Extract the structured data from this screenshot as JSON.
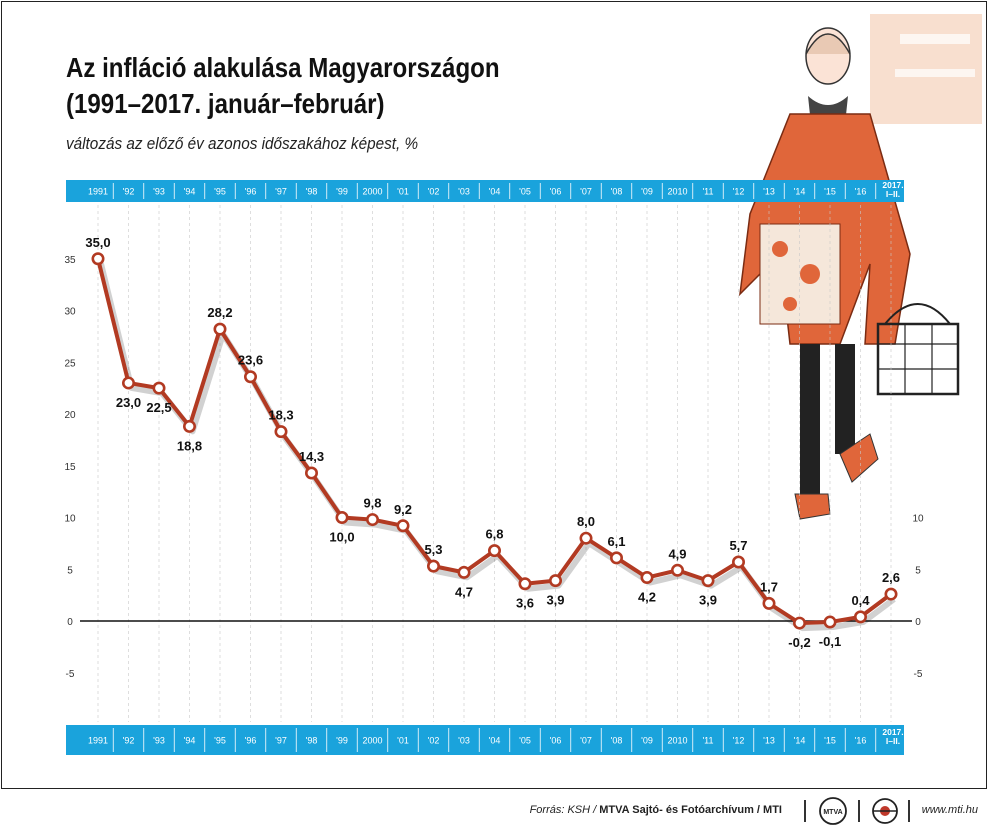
{
  "header": {
    "title_line1": "Az infláció alakulása Magyarországon",
    "title_line2": "(1991–2017. január–február)",
    "subtitle": "változás az előző év azonos időszakához képest, %"
  },
  "chart_data": {
    "type": "line",
    "title": "Az infláció alakulása Magyarországon (1991–2017. január–február)",
    "subtitle": "változás az előző év azonos időszakához képest, %",
    "xlabel": "",
    "ylabel": "",
    "ylim": [
      -5,
      35
    ],
    "left_ticks": [
      "35",
      "30",
      "25",
      "20",
      "15",
      "10",
      "5",
      "0",
      "-5"
    ],
    "right_ticks": [
      "10",
      "5",
      "0",
      "-5"
    ],
    "categories": [
      "1991",
      "'92",
      "'93",
      "'94",
      "'95",
      "'96",
      "'97",
      "'98",
      "'99",
      "2000",
      "'01",
      "'02",
      "'03",
      "'04",
      "'05",
      "'06",
      "'07",
      "'08",
      "'09",
      "2010",
      "'11",
      "'12",
      "'13",
      "'14",
      "'15",
      "'16",
      "2017. I–II."
    ],
    "values": [
      35.0,
      23.0,
      22.5,
      18.8,
      28.2,
      23.6,
      18.3,
      14.3,
      10.0,
      9.8,
      9.2,
      5.3,
      4.7,
      6.8,
      3.6,
      3.9,
      8.0,
      6.1,
      4.2,
      4.9,
      3.9,
      5.7,
      1.7,
      -0.2,
      -0.1,
      0.4,
      2.6
    ],
    "labels": [
      "35,0",
      "23,0",
      "22,5",
      "18,8",
      "28,2",
      "23,6",
      "18,3",
      "14,3",
      "10,0",
      "9,8",
      "9,2",
      "5,3",
      "4,7",
      "6,8",
      "3,6",
      "3,9",
      "8,0",
      "6,1",
      "4,2",
      "4,9",
      "3,9",
      "5,7",
      "1,7",
      "-0,2",
      "-0,1",
      "0,4",
      "2,6"
    ],
    "last_category_lines": [
      "2017.",
      "I–II."
    ],
    "series_color": "#b23a22",
    "band_color": "#1aa3dc"
  },
  "footer": {
    "source_prefix": "Forrás: KSH / ",
    "source_bold": "MTVA Sajtó- és Fotóarchívum / MTI",
    "logo1_text": "MTVA",
    "website": "www.mti.hu"
  }
}
